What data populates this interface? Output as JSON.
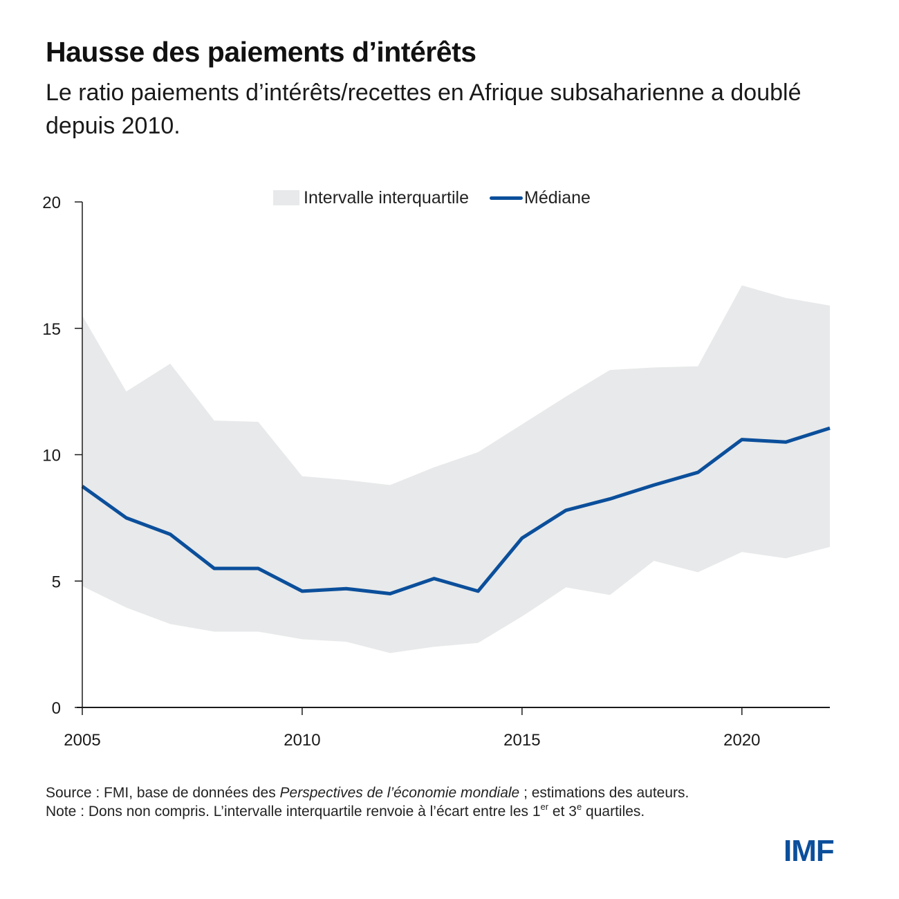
{
  "header": {
    "title": "Hausse des paiements d’intérêts",
    "subtitle": "Le ratio paiements d’intérêts/recettes en Afrique subsaharienne a doublé depuis 2010."
  },
  "legend": {
    "band_label": "Intervalle interquartile",
    "line_label": "Médiane"
  },
  "colors": {
    "median_line": "#0b4f9b",
    "band_fill": "#e8e9ea",
    "axis": "#1a1a1a",
    "logo": "#0b4f9b"
  },
  "chart_data": {
    "type": "area",
    "title": "Hausse des paiements d’intérêts",
    "subtitle": "Le ratio paiements d’intérêts/recettes en Afrique subsaharienne a doublé depuis 2010.",
    "xlabel": "",
    "ylabel": "",
    "x": [
      2005,
      2006,
      2007,
      2008,
      2009,
      2010,
      2011,
      2012,
      2013,
      2014,
      2015,
      2016,
      2017,
      2018,
      2019,
      2020,
      2021,
      2022
    ],
    "xlim": [
      2005,
      2022
    ],
    "ylim": [
      0,
      20
    ],
    "x_ticks": [
      2005,
      2010,
      2015,
      2020
    ],
    "x_tick_labels": [
      "2005",
      "2010",
      "2015",
      "2020"
    ],
    "y_ticks": [
      0,
      5,
      10,
      15,
      20
    ],
    "y_tick_labels": [
      "0",
      "5",
      "10",
      "15",
      "20"
    ],
    "grid": false,
    "legend_position": "top-center",
    "series": [
      {
        "name": "Intervalle interquartile",
        "kind": "band",
        "lower": [
          4.8,
          3.95,
          3.3,
          3.0,
          3.0,
          2.7,
          2.6,
          2.15,
          2.4,
          2.55,
          3.6,
          4.75,
          4.45,
          5.8,
          5.35,
          6.15,
          5.9,
          6.35
        ],
        "upper": [
          15.5,
          12.5,
          13.6,
          11.35,
          11.3,
          9.15,
          9.0,
          8.8,
          9.5,
          10.1,
          11.2,
          12.3,
          13.35,
          13.45,
          13.5,
          16.7,
          16.2,
          15.9
        ]
      },
      {
        "name": "Médiane",
        "kind": "line",
        "values": [
          8.75,
          7.5,
          6.85,
          5.5,
          5.5,
          4.6,
          4.7,
          4.5,
          5.1,
          4.6,
          6.7,
          7.8,
          8.25,
          8.8,
          9.3,
          10.6,
          10.5,
          11.05
        ]
      }
    ]
  },
  "footnote": {
    "source_prefix": "Source : FMI, base de données des ",
    "source_italic": "Perspectives de l’économie mondiale",
    "source_suffix": " ; estimations des auteurs.",
    "note_prefix": "Note : Dons non compris. L’intervalle interquartile renvoie à l’écart entre les 1",
    "note_sup1": "er",
    "note_middle": " et 3",
    "note_sup2": "e",
    "note_suffix": " quartiles."
  },
  "logo": {
    "text": "IMF"
  }
}
